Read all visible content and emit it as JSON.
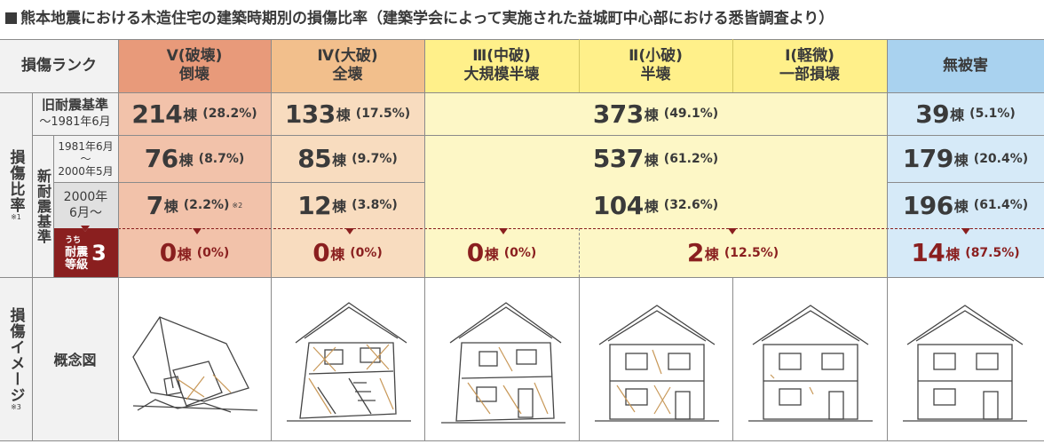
{
  "title": "熊本地震における木造住宅の建築時期別の損傷比率（建築学会によって実施された益城町中心部における悉皆調査より）",
  "header": {
    "rank_label": "損傷ランク",
    "col5": [
      "Ⅴ(破壊)",
      "倒壊"
    ],
    "col4": [
      "Ⅳ(大破)",
      "全壊"
    ],
    "col3": [
      "Ⅲ(中破)",
      "大規模半壊"
    ],
    "col2": [
      "Ⅱ(小破)",
      "半壊"
    ],
    "col1": [
      "Ⅰ(軽微)",
      "一部損壊"
    ],
    "col0": "無被害"
  },
  "side": {
    "ratio_label": "損傷比率",
    "ratio_note": "※1",
    "new_std_label": "新耐震基準",
    "image_label": "損傷イメージ",
    "image_note": "※3",
    "concept_label": "概念図"
  },
  "rows": {
    "old": {
      "label1": "旧耐震基準",
      "label2": "〜1981年6月",
      "c5": {
        "n": "214",
        "pct": "(28.2%)"
      },
      "c4": {
        "n": "133",
        "pct": "(17.5%)"
      },
      "c321": {
        "n": "373",
        "pct": "(49.1%)"
      },
      "c0": {
        "n": "39",
        "pct": "(5.1%)"
      }
    },
    "mid": {
      "label1": "1981年6月",
      "label2": "〜",
      "label3": "2000年5月",
      "c5": {
        "n": "76",
        "pct": "(8.7%)"
      },
      "c4": {
        "n": "85",
        "pct": "(9.7%)"
      },
      "c321": {
        "n": "537",
        "pct": "(61.2%)"
      },
      "c0": {
        "n": "179",
        "pct": "(20.4%)"
      }
    },
    "new": {
      "label1": "2000年",
      "label2": "6月〜",
      "c5": {
        "n": "7",
        "pct": "(2.2%)",
        "note": "※2"
      },
      "c4": {
        "n": "12",
        "pct": "(3.8%)"
      },
      "c321": {
        "n": "104",
        "pct": "(32.6%)"
      },
      "c0": {
        "n": "196",
        "pct": "(61.4%)"
      }
    },
    "grade3": {
      "label_small": "うち",
      "label1": "耐震",
      "label2": "等級",
      "grade": "3",
      "c5": {
        "n": "0",
        "pct": "(0%)"
      },
      "c4": {
        "n": "0",
        "pct": "(0%)"
      },
      "c3": {
        "n": "0",
        "pct": "(0%)"
      },
      "c21": {
        "n": "2",
        "pct": "(12.5%)"
      },
      "c0": {
        "n": "14",
        "pct": "(87.5%)"
      }
    }
  },
  "unit": "棟",
  "colors": {
    "col5_header": "#e89a7a",
    "col5_body": "#f2c2aa",
    "col4_header": "#f2bf8c",
    "col4_body": "#f8dcbf",
    "yellow_header": "#fff08a",
    "yellow_body": "#fdf7c6",
    "blue_header": "#a9d2ef",
    "blue_body": "#d6eaf8",
    "left_bg": "#f2f2f2",
    "grade_bg": "#8a1f1f",
    "accent": "#8a1f1f"
  }
}
